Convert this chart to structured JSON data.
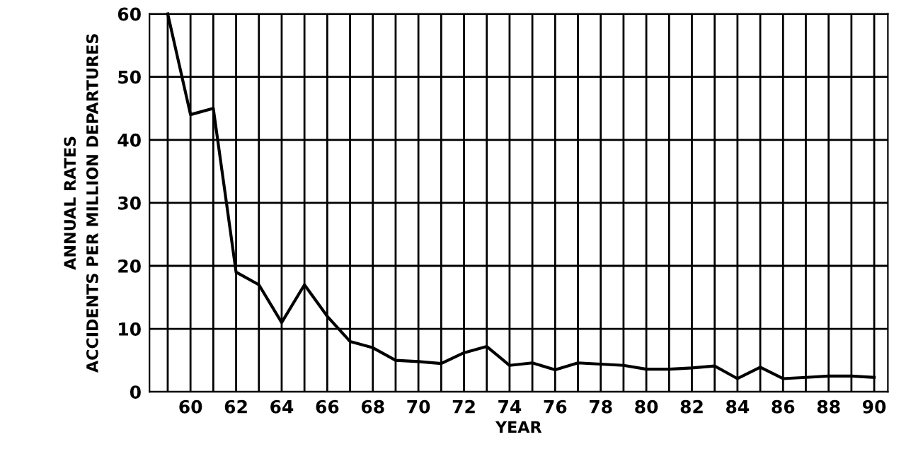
{
  "chart_data": {
    "type": "line",
    "xlabel": "YEAR",
    "ylabel": "ANNUAL RATES\nACCIDENTS PER MILLION DEPARTURES",
    "x": [
      59,
      60,
      61,
      62,
      63,
      64,
      65,
      66,
      67,
      68,
      69,
      70,
      71,
      72,
      73,
      74,
      75,
      76,
      77,
      78,
      79,
      80,
      81,
      82,
      83,
      84,
      85,
      86,
      87,
      88,
      89,
      90
    ],
    "series": [
      {
        "color": "#000000",
        "values": [
          60,
          44,
          45,
          19,
          17,
          11,
          17,
          12,
          8,
          7,
          5,
          4.8,
          4.5,
          6.2,
          7.2,
          4.2,
          4.6,
          3.5,
          4.6,
          4.4,
          4.2,
          3.6,
          3.6,
          3.8,
          4.1,
          2.1,
          3.9,
          2.1,
          2.3,
          2.5,
          2.5,
          2.3
        ]
      }
    ],
    "xlim": [
      58.2,
      90.6
    ],
    "ylim": [
      0,
      60
    ],
    "xticks": [
      {
        "value": 59,
        "label": null
      },
      60,
      {
        "value": 61,
        "label": null
      },
      62,
      {
        "value": 63,
        "label": null
      },
      64,
      {
        "value": 65,
        "label": null
      },
      66,
      {
        "value": 67,
        "label": null
      },
      68,
      {
        "value": 69,
        "label": null
      },
      70,
      {
        "value": 71,
        "label": null
      },
      72,
      {
        "value": 73,
        "label": null
      },
      74,
      {
        "value": 75,
        "label": null
      },
      76,
      {
        "value": 77,
        "label": null
      },
      78,
      {
        "value": 79,
        "label": null
      },
      80,
      {
        "value": 81,
        "label": null
      },
      82,
      {
        "value": 83,
        "label": null
      },
      84,
      {
        "value": 85,
        "label": null
      },
      86,
      {
        "value": 87,
        "label": null
      },
      88,
      {
        "value": 89,
        "label": null
      },
      90
    ],
    "yticks": [
      0,
      10,
      20,
      30,
      40,
      50,
      60
    ],
    "grid": true,
    "marker": "none",
    "line_style": "solid"
  }
}
